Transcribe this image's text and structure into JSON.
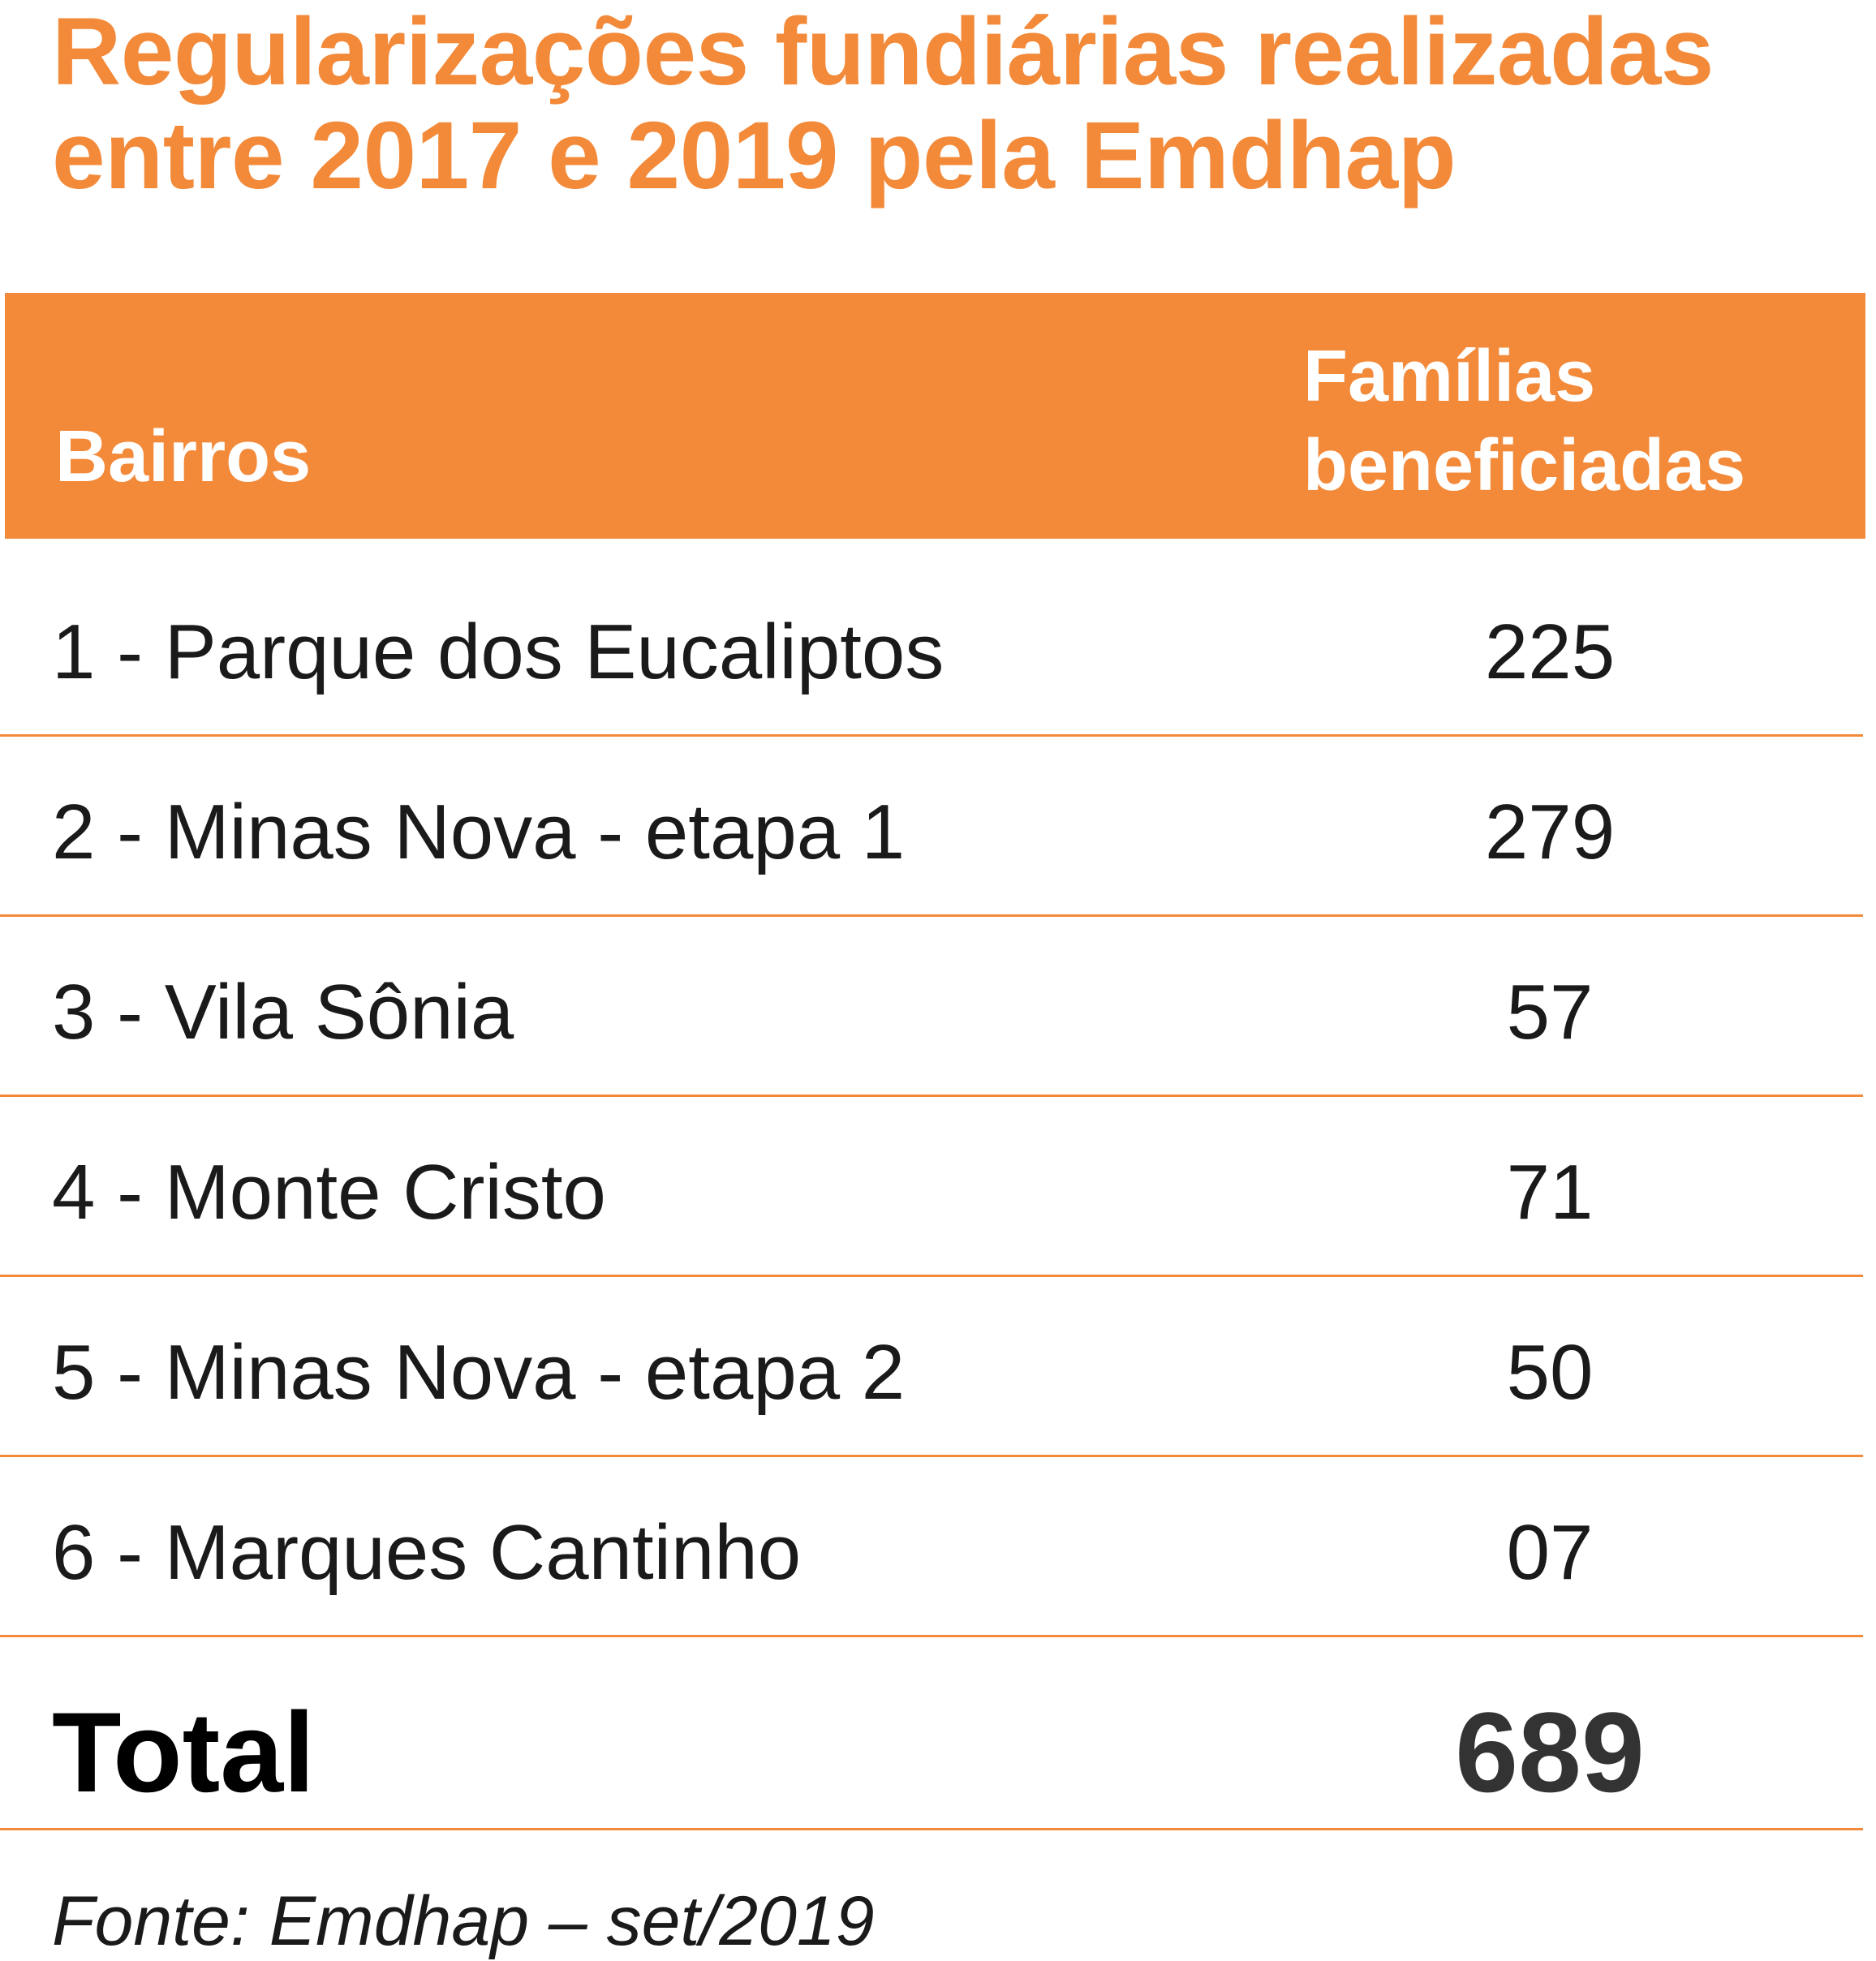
{
  "title": {
    "line1": "Regularizações fundiárias realizadas",
    "line2": "entre 2017 e 2019 pela Emdhap"
  },
  "table": {
    "headers": {
      "bairros": "Bairros",
      "familias_line1": "Famílias",
      "familias_line2": "beneficiadas"
    },
    "rows": [
      {
        "bairro": "1 - Parque dos Eucaliptos",
        "familias": "225"
      },
      {
        "bairro": "2 - Minas Nova - etapa 1",
        "familias": "279"
      },
      {
        "bairro": "3 - Vila Sônia",
        "familias": "57"
      },
      {
        "bairro": "4 - Monte Cristo",
        "familias": "71"
      },
      {
        "bairro": "5 - Minas Nova - etapa 2",
        "familias": "50"
      },
      {
        "bairro": "6 - Marques Cantinho",
        "familias": "07"
      }
    ],
    "total": {
      "label": "Total",
      "value": "689"
    }
  },
  "source": "Fonte: Emdhap – set/2019",
  "colors": {
    "accent": "#f38a3a",
    "text": "#1a1a1a",
    "total_value": "#333333"
  }
}
